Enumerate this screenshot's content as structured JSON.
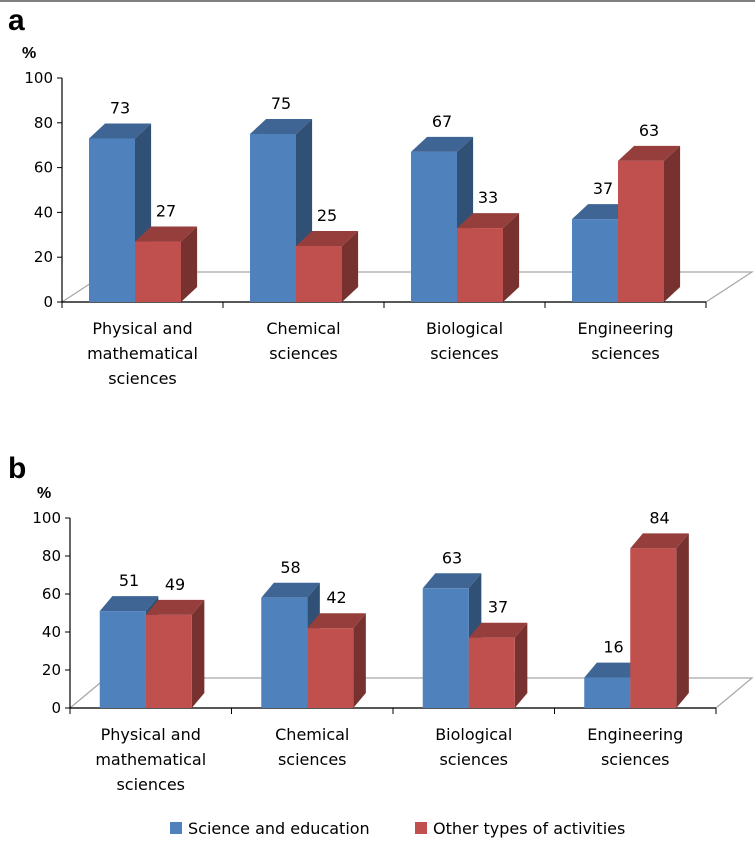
{
  "chart_data": [
    {
      "panel_label": "a",
      "type": "bar",
      "unit_label": "%",
      "categories": [
        "Physical and mathematical sciences",
        "Chemical sciences",
        "Biological sciences",
        "Engineering sciences"
      ],
      "series": [
        {
          "name": "Science and education",
          "values": [
            73,
            75,
            67,
            37
          ],
          "color": "#4F81BD"
        },
        {
          "name": "Other types of activities",
          "values": [
            27,
            25,
            33,
            63
          ],
          "color": "#C0504D"
        }
      ],
      "ylim": [
        0,
        100
      ],
      "yticks": [
        0,
        20,
        40,
        60,
        80,
        100
      ],
      "grid": false,
      "three_d": true
    },
    {
      "panel_label": "b",
      "type": "bar",
      "unit_label": "%",
      "categories": [
        "Physical and mathematical sciences",
        "Chemical sciences",
        "Biological sciences",
        "Engineering sciences"
      ],
      "series": [
        {
          "name": "Science and education",
          "values": [
            51,
            58,
            63,
            16
          ],
          "color": "#4F81BD"
        },
        {
          "name": "Other types of activities",
          "values": [
            49,
            42,
            37,
            84
          ],
          "color": "#C0504D"
        }
      ],
      "ylim": [
        0,
        100
      ],
      "yticks": [
        0,
        20,
        40,
        60,
        80,
        100
      ],
      "grid": false,
      "three_d": true
    }
  ],
  "category_label_lines": [
    [
      "Physical and",
      "mathematical",
      "sciences"
    ],
    [
      "Chemical",
      "sciences"
    ],
    [
      "Biological",
      "sciences"
    ],
    [
      "Engineering",
      "sciences"
    ]
  ],
  "legend": {
    "placement": "bottom",
    "items": [
      {
        "label": "Science and education",
        "color": "#4F81BD"
      },
      {
        "label": "Other types of activities",
        "color": "#C0504D"
      }
    ]
  }
}
